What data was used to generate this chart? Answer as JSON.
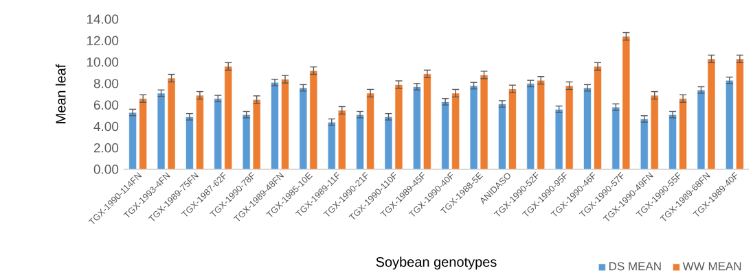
{
  "chart_data": {
    "type": "bar",
    "xlabel": "Soybean genotypes",
    "ylabel": "Mean leaf",
    "categories": [
      "TGX-1990-114FN",
      "TGX-1993-4FN",
      "TGX-1989-75FN",
      "TGX-1987-62F",
      "TGX-1990-78F",
      "TGX-1989-48FN",
      "TGX-1985-10E",
      "TGX-1989-11F",
      "TGX-1990-21F",
      "TGX-1990-110F",
      "TGX-1989-45F",
      "TGX-1990-40F",
      "TGX-1988-5E",
      "ANIDASO",
      "TGX-1990-52F",
      "TGX-1990-95F",
      "TGX-1990-46F",
      "TGX-1990-57F",
      "TGX-1990-49FN",
      "TGX-1990-55F",
      "TGX-1989-68FN",
      "TGX-1989-40F"
    ],
    "series": [
      {
        "name": "DS MEAN",
        "color": "#5b9bd5",
        "values": [
          5.3,
          7.1,
          4.9,
          6.6,
          5.1,
          8.1,
          7.6,
          4.4,
          5.1,
          4.9,
          7.7,
          6.3,
          7.8,
          6.1,
          8.0,
          5.6,
          7.6,
          5.8,
          4.7,
          5.1,
          7.4,
          8.3
        ],
        "errors": [
          0.3,
          0.3,
          0.3,
          0.3,
          0.3,
          0.3,
          0.3,
          0.3,
          0.3,
          0.3,
          0.3,
          0.3,
          0.3,
          0.3,
          0.3,
          0.3,
          0.3,
          0.3,
          0.3,
          0.3,
          0.3,
          0.3
        ]
      },
      {
        "name": "WW MEAN",
        "color": "#ed7d31",
        "values": [
          6.6,
          8.5,
          6.9,
          9.6,
          6.5,
          8.4,
          9.2,
          5.5,
          7.1,
          7.9,
          8.9,
          7.1,
          8.8,
          7.5,
          8.3,
          7.8,
          9.6,
          12.4,
          6.9,
          6.6,
          10.3,
          10.3
        ],
        "errors": [
          0.35,
          0.35,
          0.35,
          0.35,
          0.35,
          0.35,
          0.35,
          0.35,
          0.35,
          0.35,
          0.35,
          0.35,
          0.35,
          0.35,
          0.35,
          0.35,
          0.35,
          0.35,
          0.35,
          0.35,
          0.35,
          0.35
        ]
      }
    ],
    "ylim": [
      0,
      14
    ],
    "yticks": [
      {
        "value": 0,
        "label": "0.00"
      },
      {
        "value": 2,
        "label": "2.00"
      },
      {
        "value": 4,
        "label": "4.00"
      },
      {
        "value": 6,
        "label": "6.00"
      },
      {
        "value": 8,
        "label": "8.00"
      },
      {
        "value": 10,
        "label": "10.00"
      },
      {
        "value": 12,
        "label": "12.00"
      },
      {
        "value": 14,
        "label": "14.00"
      }
    ],
    "legend": "bottom right"
  }
}
